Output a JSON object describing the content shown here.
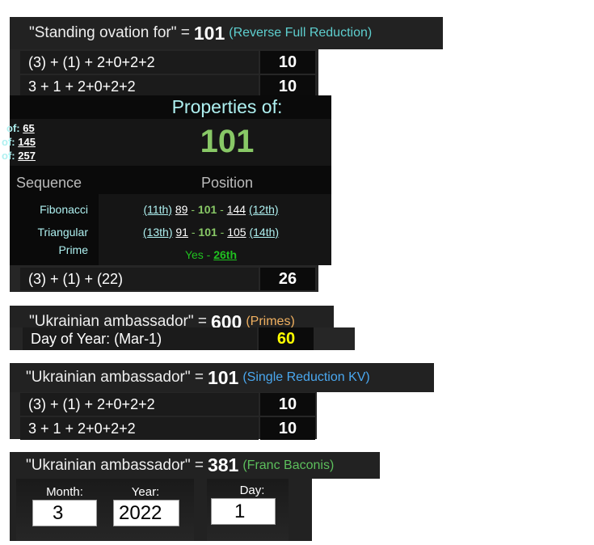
{
  "block1": {
    "phrase": "\"Standing ovation for\" =",
    "value": "101",
    "cipher": "(Reverse Full Reduction)",
    "cipher_color": "#5ecfcf",
    "rows": [
      {
        "expr": "(3) + (1) + 2+0+2+2",
        "num": "10"
      },
      {
        "expr": "3 + 1 + 2+0+2+2",
        "num": "10"
      }
    ],
    "last_row": {
      "expr": "(3) + (1) + (22)",
      "num": "26"
    }
  },
  "popup": {
    "title": "Properties of:",
    "number": "101",
    "left_lines": [
      {
        "label": "of:",
        "value": "65"
      },
      {
        "label": "of:",
        "value": "145"
      },
      {
        "label": "of:",
        "value": "257"
      }
    ],
    "col_sequence": "Sequence",
    "col_position": "Position",
    "sequences": [
      {
        "name": "Fibonacci",
        "prev_pos": "(11th)",
        "prev": "89",
        "cur": "101",
        "next": "144",
        "next_pos": "(12th)"
      },
      {
        "name": "Triangular",
        "prev_pos": "(13th)",
        "prev": "91",
        "cur": "101",
        "next": "105",
        "next_pos": "(14th)"
      }
    ],
    "prime": {
      "name": "Prime",
      "text": "Yes - ",
      "pos": "26th"
    }
  },
  "block2": {
    "phrase": "\"Ukrainian ambassador\" =",
    "value": "600",
    "cipher": "(Primes)",
    "cipher_color": "#f0b060",
    "row": {
      "expr": "Day of Year: (Mar-1)",
      "num": "60"
    }
  },
  "block3": {
    "phrase": "\"Ukrainian ambassador\" =",
    "value": "101",
    "cipher": "(Single Reduction KV)",
    "cipher_color": "#4aa8f0",
    "rows": [
      {
        "expr": "(3) + (1) + 2+0+2+2",
        "num": "10"
      },
      {
        "expr": "3 + 1 + 2+0+2+2",
        "num": "10"
      }
    ]
  },
  "block4": {
    "phrase": "\"Ukrainian ambassador\" =",
    "value": "381",
    "cipher": "(Franc Baconis)",
    "cipher_color": "#5cbf5c",
    "month_label": "Month:",
    "month": "3",
    "year_label": "Year:",
    "year": "2022",
    "day_label": "Day:",
    "day": "1"
  }
}
